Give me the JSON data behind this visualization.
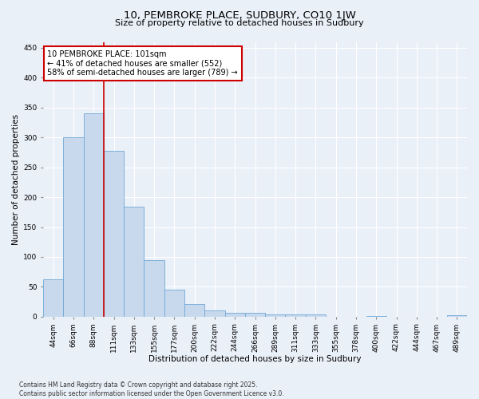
{
  "title_line1": "10, PEMBROKE PLACE, SUDBURY, CO10 1JW",
  "title_line2": "Size of property relative to detached houses in Sudbury",
  "xlabel": "Distribution of detached houses by size in Sudbury",
  "ylabel": "Number of detached properties",
  "categories": [
    "44sqm",
    "66sqm",
    "88sqm",
    "111sqm",
    "133sqm",
    "155sqm",
    "177sqm",
    "200sqm",
    "222sqm",
    "244sqm",
    "266sqm",
    "289sqm",
    "311sqm",
    "333sqm",
    "355sqm",
    "378sqm",
    "400sqm",
    "422sqm",
    "444sqm",
    "467sqm",
    "489sqm"
  ],
  "values": [
    62,
    301,
    341,
    278,
    184,
    94,
    45,
    21,
    11,
    7,
    6,
    4,
    4,
    4,
    0,
    0,
    1,
    0,
    0,
    0,
    2
  ],
  "bar_color": "#c8d9ed",
  "bar_edge_color": "#6fa8d6",
  "red_line_x": 2.5,
  "annotation_text": "10 PEMBROKE PLACE: 101sqm\n← 41% of detached houses are smaller (552)\n58% of semi-detached houses are larger (789) →",
  "annotation_box_color": "#ffffff",
  "annotation_box_edge_color": "#cc0000",
  "footnote": "Contains HM Land Registry data © Crown copyright and database right 2025.\nContains public sector information licensed under the Open Government Licence v3.0.",
  "ylim": [
    0,
    460
  ],
  "yticks": [
    0,
    50,
    100,
    150,
    200,
    250,
    300,
    350,
    400,
    450
  ],
  "background_color": "#eaf0f8",
  "plot_bg_color": "#eaf0f8",
  "grid_color": "#ffffff",
  "title1_fontsize": 9.5,
  "title2_fontsize": 8.0,
  "tick_fontsize": 6.5,
  "ylabel_fontsize": 7.5,
  "xlabel_fontsize": 7.5,
  "annot_fontsize": 7.0,
  "footnote_fontsize": 5.5
}
